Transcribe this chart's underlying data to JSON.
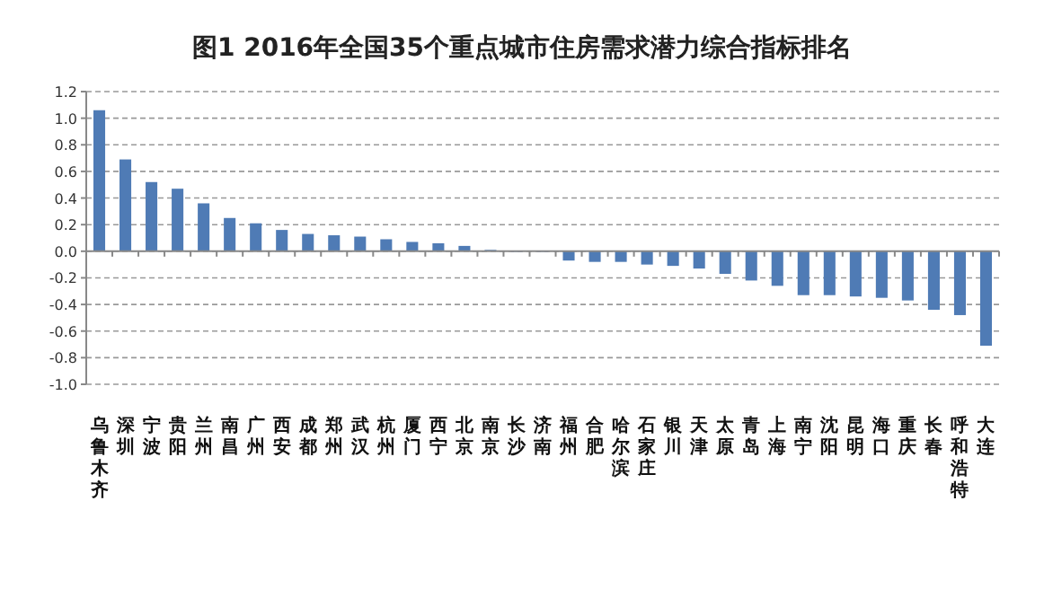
{
  "chart_data": {
    "type": "bar",
    "title": "图1  2016年全国35个重点城市住房需求潜力综合指标排名",
    "categories": [
      "乌鲁木齐",
      "深圳",
      "宁波",
      "贵阳",
      "兰州",
      "南昌",
      "广州",
      "西安",
      "成都",
      "郑州",
      "武汉",
      "杭州",
      "厦门",
      "西宁",
      "北京",
      "南京",
      "长沙",
      "济南",
      "福州",
      "合肥",
      "哈尔滨",
      "石家庄",
      "银川",
      "天津",
      "太原",
      "青岛",
      "上海",
      "南宁",
      "沈阳",
      "昆明",
      "海口",
      "重庆",
      "长春",
      "呼和浩特",
      "大连"
    ],
    "values": [
      1.06,
      0.69,
      0.52,
      0.47,
      0.36,
      0.25,
      0.21,
      0.16,
      0.13,
      0.12,
      0.11,
      0.09,
      0.07,
      0.06,
      0.04,
      0.01,
      0.0,
      0.0,
      -0.07,
      -0.08,
      -0.08,
      -0.1,
      -0.11,
      -0.13,
      -0.17,
      -0.22,
      -0.26,
      -0.33,
      -0.33,
      -0.34,
      -0.35,
      -0.37,
      -0.44,
      -0.48,
      -0.71
    ],
    "color": "#4f7bb5",
    "ylim": [
      -1.0,
      1.2
    ],
    "yticks": [
      {
        "value": -1.0,
        "label": "-1.0"
      },
      {
        "value": -0.8,
        "label": "-0.8"
      },
      {
        "value": -0.6,
        "label": "-0.6"
      },
      {
        "value": -0.4,
        "label": "-0.4"
      },
      {
        "value": -0.2,
        "label": "-0.2"
      },
      {
        "value": 0,
        "label": "0.0"
      },
      {
        "value": 0.2,
        "label": "0.2"
      },
      {
        "value": 0.4,
        "label": "0.4"
      },
      {
        "value": 0.6,
        "label": "0.6"
      },
      {
        "value": 0.8,
        "label": "0.8"
      },
      {
        "value": 1.0,
        "label": "1.0"
      },
      {
        "value": 1.2,
        "label": "1.2"
      }
    ],
    "grid": "y"
  }
}
